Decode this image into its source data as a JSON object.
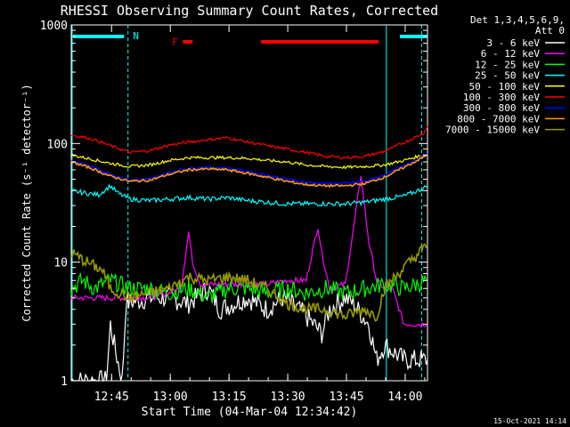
{
  "chart_data": {
    "type": "line",
    "title": "RHESSI Observing Summary Count Rates, Corrected",
    "xlabel": "Start Time (04-Mar-04 12:34:42)",
    "ylabel": "Corrected Count Rate (s⁻¹ detector⁻¹)",
    "yscale": "log",
    "ylim": [
      1,
      1000
    ],
    "xlim_minutes": [
      0,
      91
    ],
    "x_ticks": [
      {
        "label": "12:45",
        "minutes": 10.3
      },
      {
        "label": "13:00",
        "minutes": 25.3
      },
      {
        "label": "13:15",
        "minutes": 40.3
      },
      {
        "label": "13:30",
        "minutes": 55.3
      },
      {
        "label": "13:45",
        "minutes": 70.3
      },
      {
        "label": "14:00",
        "minutes": 85.3
      }
    ],
    "y_ticks": [
      {
        "label": "1",
        "value": 1
      },
      {
        "label": "10",
        "value": 10
      },
      {
        "label": "100",
        "value": 100
      },
      {
        "label": "1000",
        "value": 1000
      }
    ],
    "legend_header": [
      "Det 1,3,4,5,6,9,",
      "Att 0"
    ],
    "legend_placement": "right",
    "series": [
      {
        "name": "3 - 6 keV",
        "color": "#ffffff",
        "points": [
          [
            0,
            1
          ],
          [
            9,
            1
          ],
          [
            10,
            3
          ],
          [
            11,
            2
          ],
          [
            13,
            1
          ],
          [
            14,
            4.5
          ],
          [
            20,
            5
          ],
          [
            25,
            5
          ],
          [
            30,
            4.5
          ],
          [
            35,
            6
          ],
          [
            38,
            4
          ],
          [
            45,
            5
          ],
          [
            50,
            4
          ],
          [
            54,
            5
          ],
          [
            58,
            4
          ],
          [
            60,
            3.5
          ],
          [
            64,
            2.5
          ],
          [
            66,
            4
          ],
          [
            70,
            5
          ],
          [
            72,
            4.5
          ],
          [
            76,
            3
          ],
          [
            78,
            1.5
          ],
          [
            80,
            2
          ],
          [
            85,
            1.5
          ],
          [
            91,
            1.5
          ]
        ]
      },
      {
        "name": "6 - 12 keV",
        "color": "#ff00ff",
        "points": [
          [
            0,
            5
          ],
          [
            20,
            5
          ],
          [
            25,
            5.5
          ],
          [
            28,
            6
          ],
          [
            30,
            18
          ],
          [
            31,
            10
          ],
          [
            33,
            6.5
          ],
          [
            40,
            6.5
          ],
          [
            50,
            6.5
          ],
          [
            55,
            7
          ],
          [
            60,
            7
          ],
          [
            63,
            20
          ],
          [
            64,
            12
          ],
          [
            66,
            6
          ],
          [
            70,
            6.5
          ],
          [
            72,
            18
          ],
          [
            74,
            55
          ],
          [
            75,
            28
          ],
          [
            76,
            15
          ],
          [
            78,
            7
          ],
          [
            80,
            6
          ],
          [
            82,
            6
          ],
          [
            85,
            3
          ],
          [
            91,
            3
          ]
        ]
      },
      {
        "name": "12 - 25 keV",
        "color": "#00ff00",
        "points": [
          [
            0,
            6
          ],
          [
            3,
            7
          ],
          [
            6,
            6
          ],
          [
            10,
            7
          ],
          [
            15,
            6
          ],
          [
            20,
            6
          ],
          [
            25,
            5.5
          ],
          [
            30,
            6
          ],
          [
            35,
            5
          ],
          [
            40,
            6
          ],
          [
            45,
            6
          ],
          [
            50,
            5.5
          ],
          [
            55,
            6
          ],
          [
            60,
            5.5
          ],
          [
            65,
            6
          ],
          [
            70,
            5.5
          ],
          [
            75,
            6
          ],
          [
            80,
            6.5
          ],
          [
            85,
            6
          ],
          [
            91,
            7
          ]
        ]
      },
      {
        "name": "25 - 50 keV",
        "color": "#00ffff",
        "points": [
          [
            0,
            40
          ],
          [
            4,
            38
          ],
          [
            7,
            37
          ],
          [
            10,
            44
          ],
          [
            12,
            38
          ],
          [
            15,
            34
          ],
          [
            20,
            33
          ],
          [
            25,
            34
          ],
          [
            30,
            35
          ],
          [
            35,
            34
          ],
          [
            40,
            35
          ],
          [
            45,
            33
          ],
          [
            50,
            32
          ],
          [
            55,
            31
          ],
          [
            60,
            31
          ],
          [
            65,
            31
          ],
          [
            70,
            31
          ],
          [
            75,
            32
          ],
          [
            80,
            34
          ],
          [
            85,
            36
          ],
          [
            90,
            42
          ],
          [
            91,
            44
          ]
        ]
      },
      {
        "name": "50 - 100 keV",
        "color": "#ffff00",
        "points": [
          [
            0,
            80
          ],
          [
            5,
            74
          ],
          [
            10,
            68
          ],
          [
            15,
            64
          ],
          [
            20,
            66
          ],
          [
            25,
            72
          ],
          [
            30,
            76
          ],
          [
            35,
            76
          ],
          [
            40,
            76
          ],
          [
            45,
            75
          ],
          [
            50,
            72
          ],
          [
            55,
            70
          ],
          [
            60,
            66
          ],
          [
            65,
            64
          ],
          [
            70,
            63
          ],
          [
            75,
            64
          ],
          [
            80,
            66
          ],
          [
            85,
            72
          ],
          [
            91,
            82
          ]
        ]
      },
      {
        "name": "100 - 300 keV",
        "color": "#ff0000",
        "points": [
          [
            0,
            118
          ],
          [
            5,
            110
          ],
          [
            10,
            96
          ],
          [
            15,
            84
          ],
          [
            20,
            87
          ],
          [
            25,
            97
          ],
          [
            30,
            103
          ],
          [
            35,
            108
          ],
          [
            40,
            112
          ],
          [
            45,
            103
          ],
          [
            50,
            96
          ],
          [
            55,
            90
          ],
          [
            60,
            84
          ],
          [
            65,
            78
          ],
          [
            70,
            76
          ],
          [
            75,
            78
          ],
          [
            80,
            86
          ],
          [
            85,
            102
          ],
          [
            90,
            122
          ],
          [
            91,
            140
          ]
        ]
      },
      {
        "name": "300 - 800 keV",
        "color": "#0000ff",
        "points": [
          [
            0,
            72
          ],
          [
            5,
            64
          ],
          [
            10,
            55
          ],
          [
            15,
            49
          ],
          [
            20,
            50
          ],
          [
            25,
            57
          ],
          [
            30,
            62
          ],
          [
            35,
            63
          ],
          [
            40,
            62
          ],
          [
            45,
            58
          ],
          [
            50,
            54
          ],
          [
            55,
            50
          ],
          [
            60,
            47
          ],
          [
            65,
            46
          ],
          [
            70,
            46
          ],
          [
            75,
            48
          ],
          [
            80,
            54
          ],
          [
            85,
            65
          ],
          [
            91,
            82
          ]
        ]
      },
      {
        "name": "800 - 7000 keV",
        "color": "#ff9900",
        "points": [
          [
            0,
            70
          ],
          [
            5,
            62
          ],
          [
            10,
            53
          ],
          [
            15,
            48
          ],
          [
            20,
            49
          ],
          [
            25,
            55
          ],
          [
            30,
            60
          ],
          [
            35,
            61
          ],
          [
            40,
            60
          ],
          [
            45,
            56
          ],
          [
            50,
            52
          ],
          [
            55,
            48
          ],
          [
            60,
            45
          ],
          [
            65,
            44
          ],
          [
            70,
            44
          ],
          [
            75,
            46
          ],
          [
            80,
            52
          ],
          [
            85,
            63
          ],
          [
            91,
            80
          ]
        ]
      },
      {
        "name": "7000 - 15000 keV",
        "color": "#999900",
        "points": [
          [
            0,
            12
          ],
          [
            4,
            10
          ],
          [
            8,
            8.5
          ],
          [
            10,
            6
          ],
          [
            15,
            5
          ],
          [
            20,
            5.5
          ],
          [
            25,
            6
          ],
          [
            30,
            7.5
          ],
          [
            35,
            7
          ],
          [
            40,
            7.5
          ],
          [
            45,
            7
          ],
          [
            50,
            6
          ],
          [
            55,
            4.5
          ],
          [
            60,
            4
          ],
          [
            65,
            4
          ],
          [
            70,
            3.5
          ],
          [
            75,
            4
          ],
          [
            78,
            3.5
          ],
          [
            80,
            6
          ],
          [
            85,
            9
          ],
          [
            91,
            14
          ]
        ]
      }
    ],
    "annotations": {
      "top_labels": [
        {
          "text": "N",
          "minutes": 14.5,
          "color": "#00ffff"
        },
        {
          "text": "F",
          "minutes": 26.5,
          "color": "#ff0000"
        }
      ],
      "night_bars": [
        [
          0,
          13.5
        ],
        [
          83.5,
          91
        ]
      ],
      "flare_bars": [
        [
          28.5,
          31
        ],
        [
          48.5,
          78.5
        ]
      ],
      "dashed_lines_minutes": [
        14.5,
        89.5
      ],
      "solid_lines_minutes": [
        0,
        80.5
      ]
    },
    "footer_date": "15-Oct-2021 14:14"
  }
}
